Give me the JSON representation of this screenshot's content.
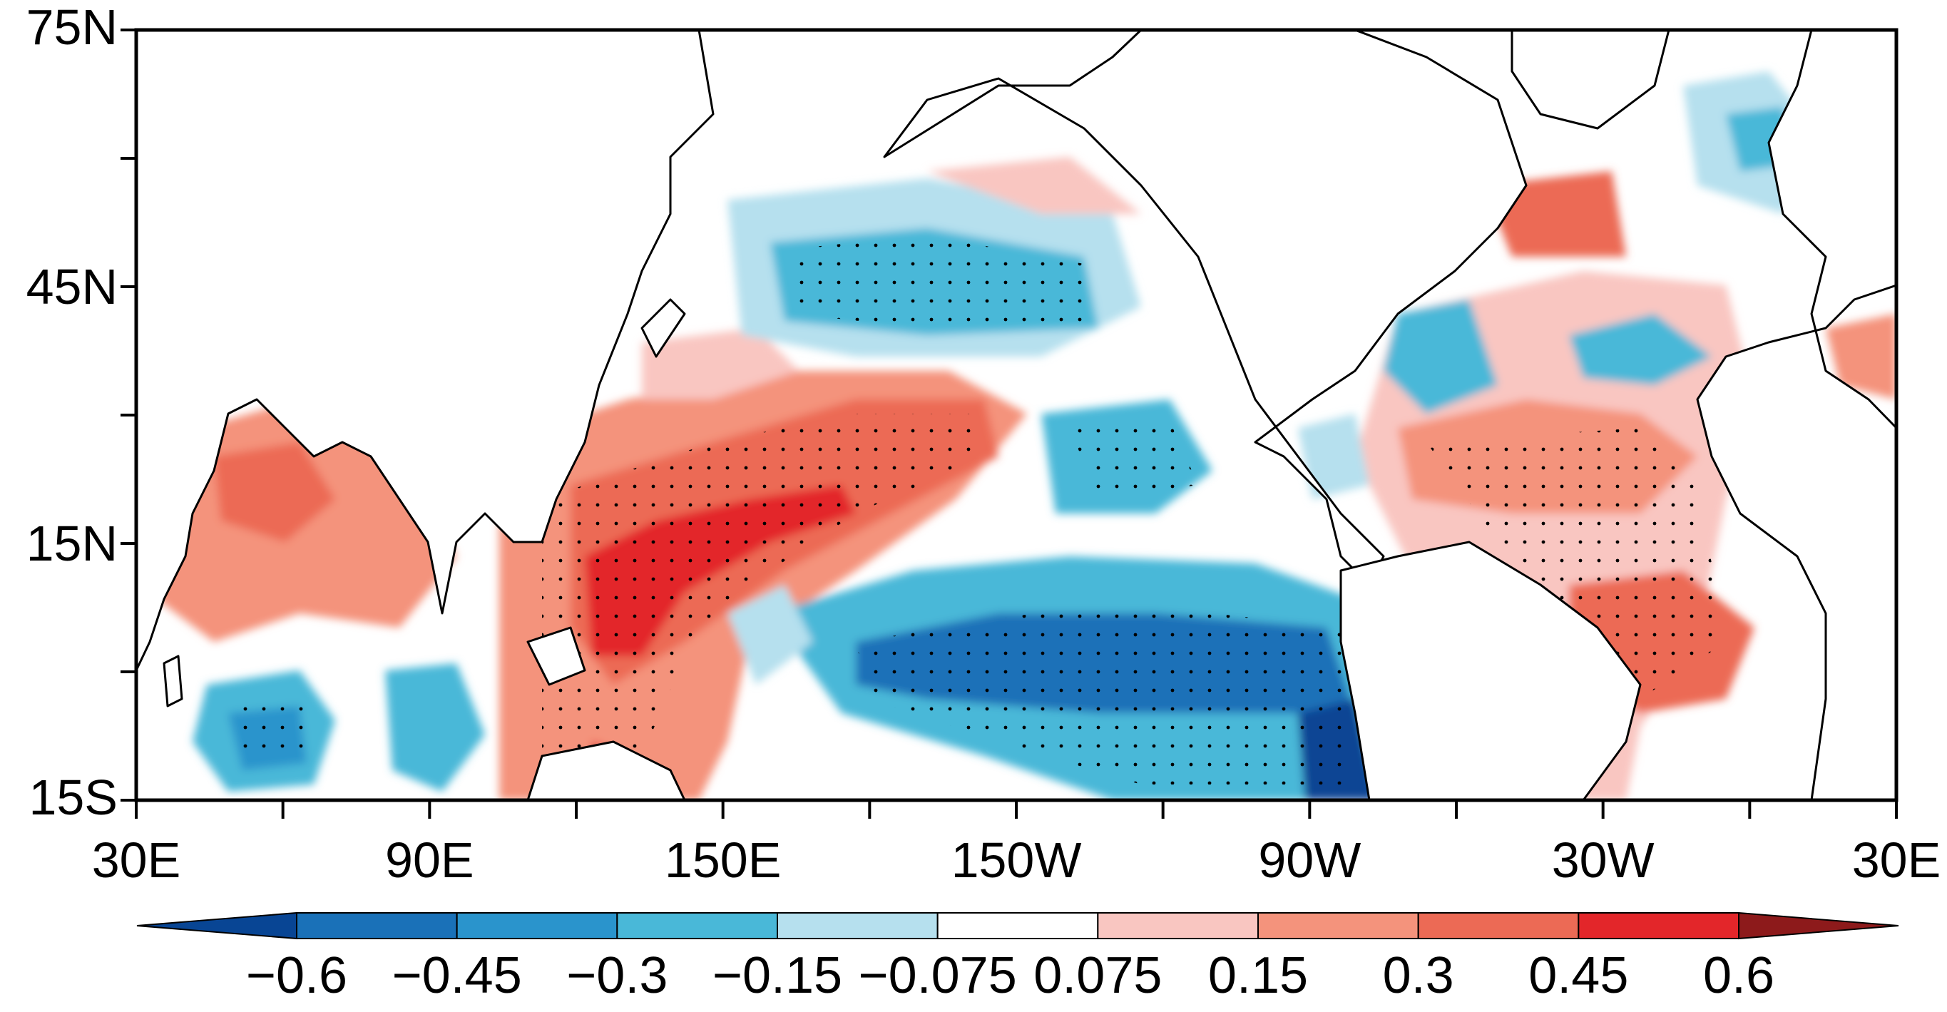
{
  "figure": {
    "type": "map",
    "title": "",
    "y_axis": {
      "tick_labels": [
        "75N",
        "45N",
        "15N",
        "15S"
      ],
      "tick_values": [
        75,
        45,
        15,
        -15
      ],
      "minor_tick_values": [
        75,
        60,
        45,
        30,
        15,
        0,
        -15
      ],
      "range": [
        -15,
        75
      ]
    },
    "x_axis": {
      "tick_labels": [
        "30E",
        "90E",
        "150E",
        "150W",
        "90W",
        "30W",
        "30E"
      ],
      "tick_values": [
        30,
        90,
        150,
        210,
        270,
        330,
        390
      ],
      "minor_tick_values": [
        30,
        60,
        90,
        120,
        150,
        180,
        210,
        240,
        270,
        300,
        330,
        360,
        390
      ],
      "range": [
        30,
        390
      ]
    },
    "colorbar": {
      "labels": [
        "−0.6",
        "−0.45",
        "−0.3",
        "−0.15",
        "−0.075",
        "0.075",
        "0.15",
        "0.3",
        "0.45",
        "0.6"
      ],
      "levels": [
        -0.6,
        -0.45,
        -0.3,
        -0.15,
        -0.075,
        0.075,
        0.15,
        0.3,
        0.45,
        0.6
      ],
      "colors": [
        "#084594",
        "#1a71b8",
        "#2a94cc",
        "#49b8d8",
        "#b6e0ee",
        "#ffffff",
        "#f9c6c1",
        "#f4937c",
        "#ec6a55",
        "#e3262a",
        "#8d1a1b"
      ]
    }
  }
}
